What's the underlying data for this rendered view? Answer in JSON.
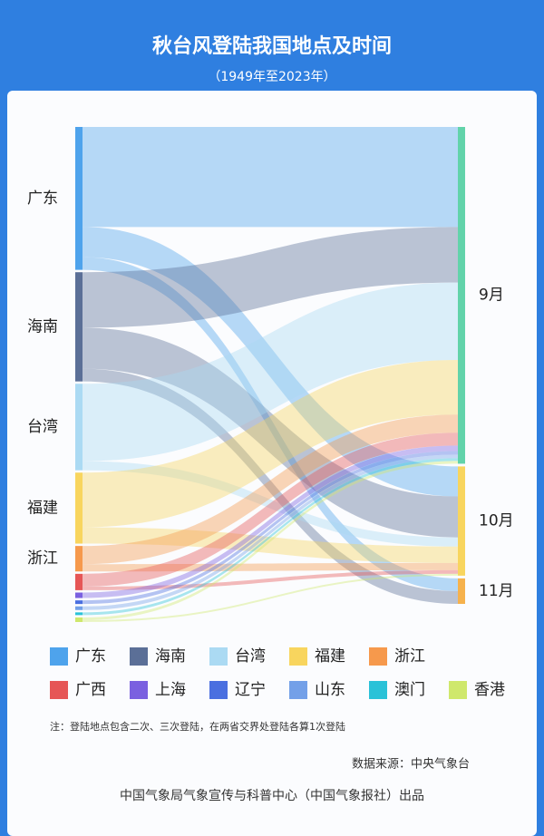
{
  "chart_data": {
    "type": "sankey",
    "title": "秋台风登陆我国地点及时间",
    "subtitle": "（1949年至2023年）",
    "sources": [
      {
        "name": "广东",
        "color": "#4ea3ec"
      },
      {
        "name": "海南",
        "color": "#5b6f97"
      },
      {
        "name": "台湾",
        "color": "#abdaf3"
      },
      {
        "name": "福建",
        "color": "#f8d55e"
      },
      {
        "name": "浙江",
        "color": "#f6994c"
      },
      {
        "name": "广西",
        "color": "#e65656"
      },
      {
        "name": "上海",
        "color": "#7a60e0"
      },
      {
        "name": "辽宁",
        "color": "#4a6fe0"
      },
      {
        "name": "山东",
        "color": "#73a0e8"
      },
      {
        "name": "澳门",
        "color": "#2ac2d8"
      },
      {
        "name": "香港",
        "color": "#cfe86c"
      }
    ],
    "targets": [
      {
        "name": "9月",
        "color": "#62d3aa"
      },
      {
        "name": "10月",
        "color": "#f8d55e"
      },
      {
        "name": "11月",
        "color": "#f6b24c"
      }
    ],
    "links": [
      {
        "source": 0,
        "target": 0,
        "value": 110
      },
      {
        "source": 0,
        "target": 1,
        "value": 33
      },
      {
        "source": 0,
        "target": 2,
        "value": 14
      },
      {
        "source": 1,
        "target": 0,
        "value": 61
      },
      {
        "source": 1,
        "target": 1,
        "value": 45
      },
      {
        "source": 1,
        "target": 2,
        "value": 14
      },
      {
        "source": 2,
        "target": 0,
        "value": 85
      },
      {
        "source": 2,
        "target": 1,
        "value": 10
      },
      {
        "source": 3,
        "target": 0,
        "value": 60
      },
      {
        "source": 3,
        "target": 1,
        "value": 18
      },
      {
        "source": 4,
        "target": 0,
        "value": 20
      },
      {
        "source": 4,
        "target": 1,
        "value": 8
      },
      {
        "source": 5,
        "target": 0,
        "value": 14
      },
      {
        "source": 5,
        "target": 1,
        "value": 4
      },
      {
        "source": 6,
        "target": 0,
        "value": 6
      },
      {
        "source": 7,
        "target": 0,
        "value": 4
      },
      {
        "source": 8,
        "target": 0,
        "value": 4
      },
      {
        "source": 9,
        "target": 0,
        "value": 3
      },
      {
        "source": 10,
        "target": 0,
        "value": 3
      },
      {
        "source": 10,
        "target": 1,
        "value": 2
      }
    ],
    "note": "注：登陆地点包含二次、三次登陆，在两省交界处登陆各算1次登陆",
    "data_source": "数据来源：中央气象台",
    "credit": "中国气象局气象宣传与科普中心（中国气象报社）出品"
  }
}
